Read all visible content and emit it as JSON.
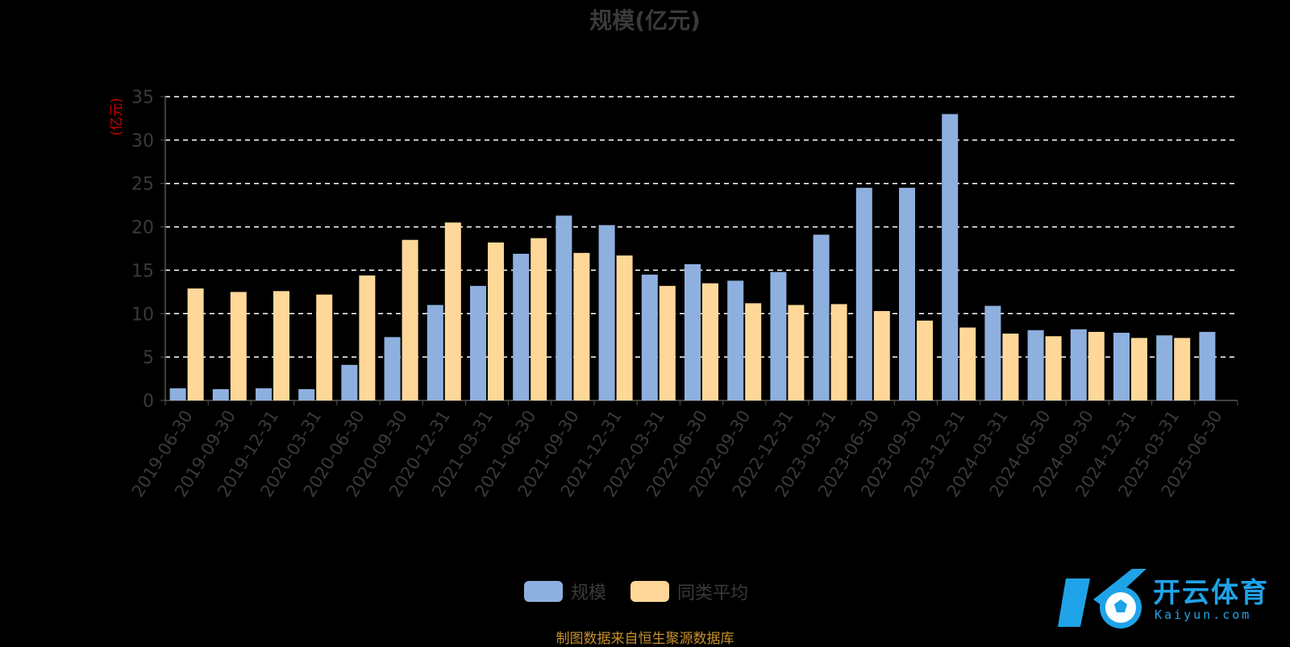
{
  "title": "规模(亿元)",
  "footer": "制图数据来自恒生聚源数据库",
  "logo": {
    "name": "开云体育",
    "domain": "Kaiyun.com"
  },
  "legend": [
    {
      "label": "规模",
      "color": "#8eb0de"
    },
    {
      "label": "同类平均",
      "color": "#ffd899"
    }
  ],
  "chart_data": {
    "type": "bar",
    "title": "规模(亿元)",
    "ylabel": "(亿元)",
    "ylabel_color": "#cc0000",
    "ylim": [
      0,
      35
    ],
    "yticks": [
      0,
      5,
      10,
      15,
      20,
      25,
      30,
      35
    ],
    "grid": "dashed-horizontal",
    "categories": [
      "2019-06-30",
      "2019-09-30",
      "2019-12-31",
      "2020-03-31",
      "2020-06-30",
      "2020-09-30",
      "2020-12-31",
      "2021-03-31",
      "2021-06-30",
      "2021-09-30",
      "2021-12-31",
      "2022-03-31",
      "2022-06-30",
      "2022-09-30",
      "2022-12-31",
      "2023-03-31",
      "2023-06-30",
      "2023-09-30",
      "2023-12-31",
      "2024-03-31",
      "2024-06-30",
      "2024-09-30",
      "2024-12-31",
      "2025-03-31",
      "2025-06-30"
    ],
    "series": [
      {
        "name": "规模",
        "color": "#8eb0de",
        "values": [
          1.4,
          1.3,
          1.4,
          1.3,
          4.1,
          7.3,
          11.0,
          13.2,
          16.9,
          21.3,
          20.2,
          14.5,
          15.7,
          13.8,
          14.8,
          19.1,
          24.5,
          24.5,
          33.0,
          10.9,
          8.1,
          8.2,
          7.8,
          7.5,
          7.9
        ]
      },
      {
        "name": "同类平均",
        "color": "#ffd899",
        "values": [
          12.9,
          12.5,
          12.6,
          12.2,
          14.4,
          18.5,
          20.5,
          18.2,
          18.7,
          17.0,
          16.7,
          13.2,
          13.5,
          11.2,
          11.0,
          11.1,
          10.3,
          9.2,
          8.4,
          7.7,
          7.4,
          7.9,
          7.2,
          7.2,
          null
        ]
      }
    ]
  }
}
